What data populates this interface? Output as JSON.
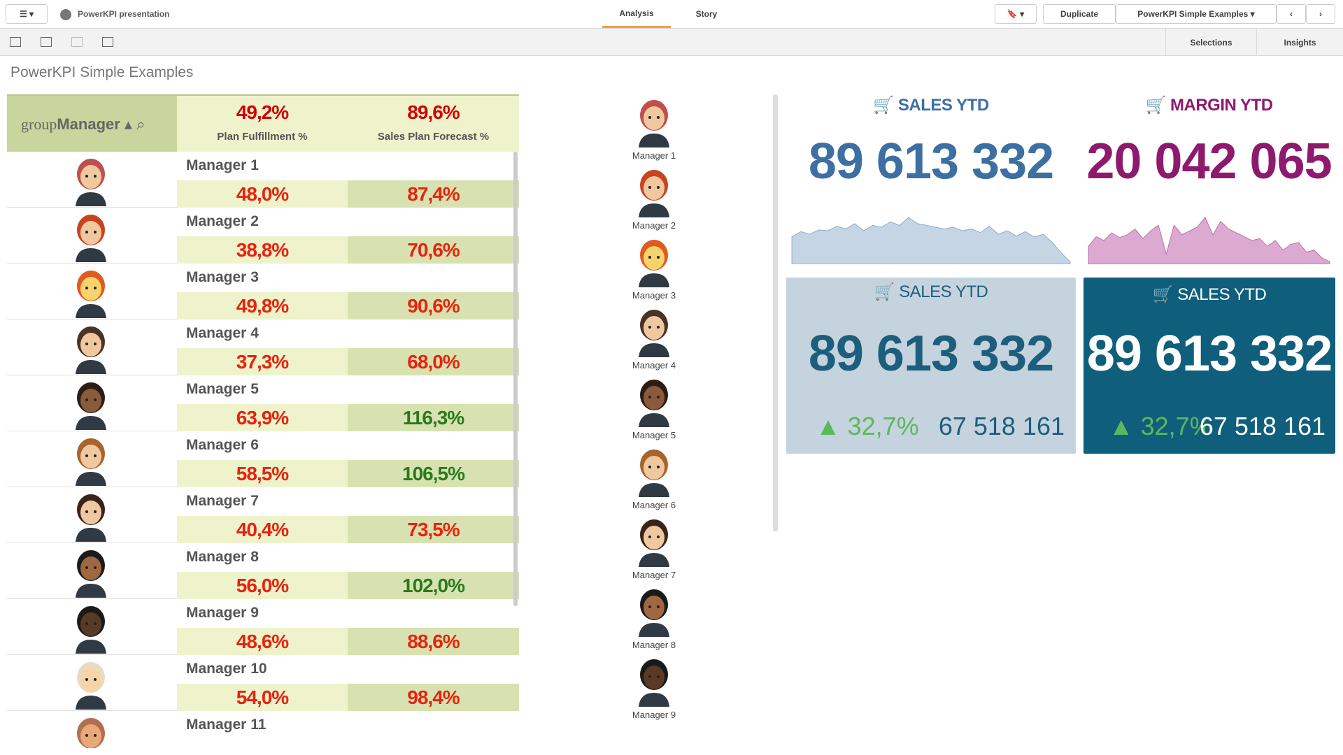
{
  "toolbar": {
    "app_title": "PowerKPI presentation",
    "tabs": [
      "Analysis",
      "Story"
    ],
    "duplicate": "Duplicate",
    "sheet": "PowerKPI Simple Examples",
    "selections": "Selections",
    "insights": "Insights"
  },
  "sheet_title": "PowerKPI Simple Examples",
  "table": {
    "header": {
      "dimension_prefix": "group",
      "dimension": "Manager",
      "measures": [
        {
          "total": "49,2%",
          "label": "Plan Fulfillment %"
        },
        {
          "total": "89,6%",
          "label": "Sales Plan Forecast %"
        }
      ]
    },
    "rows": [
      {
        "name": "Manager 1",
        "fulfillment": "48,0%",
        "forecast": "87,4%"
      },
      {
        "name": "Manager 2",
        "fulfillment": "38,8%",
        "forecast": "70,6%"
      },
      {
        "name": "Manager 3",
        "fulfillment": "49,8%",
        "forecast": "90,6%"
      },
      {
        "name": "Manager 4",
        "fulfillment": "37,3%",
        "forecast": "68,0%"
      },
      {
        "name": "Manager 5",
        "fulfillment": "63,9%",
        "forecast": "116,3%"
      },
      {
        "name": "Manager 6",
        "fulfillment": "58,5%",
        "forecast": "106,5%"
      },
      {
        "name": "Manager 7",
        "fulfillment": "40,4%",
        "forecast": "73,5%"
      },
      {
        "name": "Manager 8",
        "fulfillment": "56,0%",
        "forecast": "102,0%"
      },
      {
        "name": "Manager 9",
        "fulfillment": "48,6%",
        "forecast": "88,6%"
      },
      {
        "name": "Manager 10",
        "fulfillment": "54,0%",
        "forecast": "98,4%"
      },
      {
        "name": "Manager 11"
      }
    ]
  },
  "avatars": [
    "Manager 1",
    "Manager 2",
    "Manager 3",
    "Manager 4",
    "Manager 5",
    "Manager 6",
    "Manager 7",
    "Manager 8",
    "Manager 9"
  ],
  "kpis": [
    {
      "title": "SALES YTD",
      "value": "89 613 332",
      "color": "#3d6fa3",
      "sparkline": {
        "type": "area",
        "color": "#c5d5e4",
        "values": [
          30,
          36,
          33,
          38,
          37,
          42,
          39,
          45,
          37,
          43,
          41,
          47,
          43,
          52,
          45,
          43,
          41,
          39,
          41,
          37,
          39,
          35,
          42,
          33,
          37,
          31,
          36,
          30,
          33,
          24,
          12,
          2
        ]
      }
    },
    {
      "title": "MARGIN YTD",
      "value": "20 042 065",
      "color": "#8e1a6e",
      "sparkline": {
        "type": "area",
        "color": "#dcaad0",
        "values": [
          18,
          28,
          24,
          32,
          27,
          30,
          36,
          26,
          34,
          40,
          10,
          40,
          30,
          34,
          38,
          48,
          30,
          44,
          36,
          32,
          28,
          24,
          26,
          18,
          24,
          14,
          20,
          22,
          12,
          14,
          6,
          2
        ]
      }
    }
  ],
  "cards": [
    {
      "title": "SALES YTD",
      "value": "89 613 332",
      "change": "32,7%",
      "comparison": "67 518 161",
      "background": "#c5d3df",
      "color": "#1d5e7c"
    },
    {
      "title": "SALES YTD",
      "value": "89 613 332",
      "change": "32,7%",
      "comparison": "67 518 161",
      "background": "#0f5e7c",
      "color": "#ffffff"
    }
  ]
}
